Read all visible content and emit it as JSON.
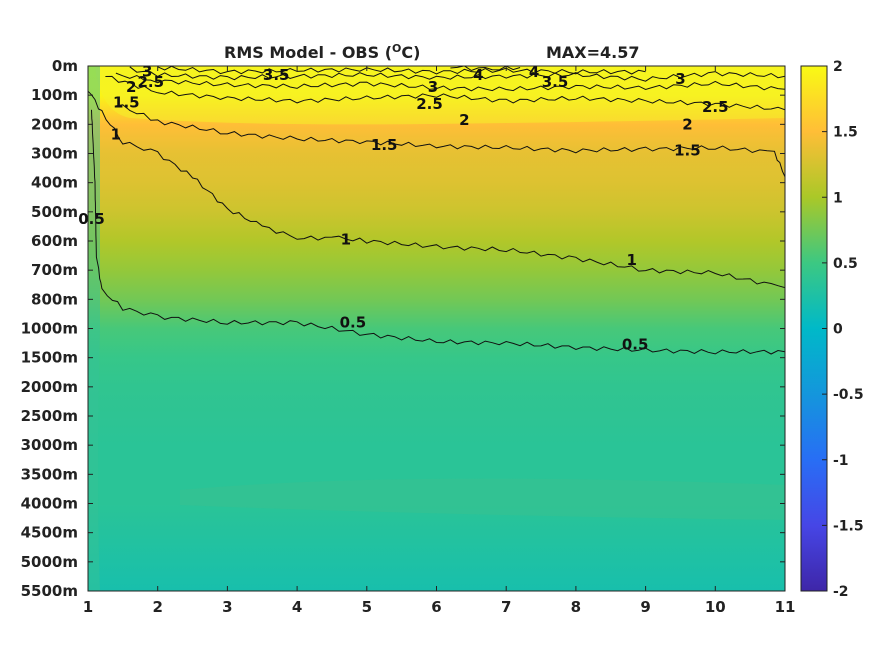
{
  "chart_data": {
    "type": "heatmap",
    "title_main": "RMS Model - OBS (",
    "title_sup": "O",
    "title_unit": "C)",
    "max_label": "MAX=4.57",
    "x": {
      "range": [
        1,
        11
      ],
      "ticks": [
        "1",
        "2",
        "3",
        "4",
        "5",
        "6",
        "7",
        "8",
        "9",
        "10",
        "11"
      ]
    },
    "y": {
      "ticks": [
        "0m",
        "100m",
        "200m",
        "300m",
        "400m",
        "500m",
        "600m",
        "700m",
        "800m",
        "1000m",
        "1500m",
        "2000m",
        "2500m",
        "3000m",
        "3500m",
        "4000m",
        "4500m",
        "5000m",
        "5500m"
      ]
    },
    "colorbar": {
      "range": [
        -2,
        2
      ],
      "ticks": [
        "2",
        "1.5",
        "1",
        "0.5",
        "0",
        "-0.5",
        "-1",
        "-1.5",
        "-2"
      ]
    },
    "field_profile": [
      {
        "depth_index": 0,
        "value": 2.0
      },
      {
        "depth_index": 1,
        "value": 1.95
      },
      {
        "depth_index": 2,
        "value": 1.5
      },
      {
        "depth_index": 3,
        "value": 1.35
      },
      {
        "depth_index": 4,
        "value": 1.3
      },
      {
        "depth_index": 5,
        "value": 1.2
      },
      {
        "depth_index": 6,
        "value": 1.05
      },
      {
        "depth_index": 7,
        "value": 0.9
      },
      {
        "depth_index": 8,
        "value": 0.75
      },
      {
        "depth_index": 9,
        "value": 0.55
      },
      {
        "depth_index": 10,
        "value": 0.45
      },
      {
        "depth_index": 11,
        "value": 0.4
      },
      {
        "depth_index": 12,
        "value": 0.38
      },
      {
        "depth_index": 13,
        "value": 0.35
      },
      {
        "depth_index": 14,
        "value": 0.35
      },
      {
        "depth_index": 15,
        "value": 0.35
      },
      {
        "depth_index": 16,
        "value": 0.3
      },
      {
        "depth_index": 17,
        "value": 0.25
      },
      {
        "depth_index": 18,
        "value": 0.2
      }
    ],
    "contours": [
      {
        "level": "0.5",
        "points": [
          [
            1.05,
            1.5
          ],
          [
            1.1,
            4
          ],
          [
            1.12,
            6.5
          ],
          [
            1.2,
            7.7
          ],
          [
            1.5,
            8.3
          ],
          [
            2,
            8.6
          ],
          [
            3,
            8.8
          ],
          [
            4,
            8.8
          ],
          [
            5,
            9.2
          ],
          [
            6,
            9.45
          ],
          [
            7,
            9.5
          ],
          [
            8,
            9.65
          ],
          [
            9,
            9.75
          ],
          [
            10,
            9.8
          ],
          [
            11,
            9.8
          ]
        ]
      },
      {
        "level": "1",
        "points": [
          [
            1.0,
            0.8
          ],
          [
            1.2,
            1.6
          ],
          [
            1.5,
            2.6
          ],
          [
            2.0,
            3.0
          ],
          [
            2.5,
            3.8
          ],
          [
            3.0,
            4.9
          ],
          [
            3.5,
            5.5
          ],
          [
            4.0,
            5.9
          ],
          [
            4.6,
            5.9
          ],
          [
            5.0,
            6.0
          ],
          [
            6.0,
            6.2
          ],
          [
            7.0,
            6.3
          ],
          [
            8.0,
            6.6
          ],
          [
            9.0,
            7.0
          ],
          [
            10.0,
            7.1
          ],
          [
            10.8,
            7.5
          ],
          [
            11.0,
            7.6
          ]
        ]
      },
      {
        "level": "1.5",
        "points": [
          [
            1.4,
            1.3
          ],
          [
            2,
            1.9
          ],
          [
            3,
            2.3
          ],
          [
            4,
            2.5
          ],
          [
            5,
            2.6
          ],
          [
            6,
            2.75
          ],
          [
            7,
            2.8
          ],
          [
            8,
            2.9
          ],
          [
            9,
            2.85
          ],
          [
            10,
            2.8
          ],
          [
            10.85,
            2.95
          ],
          [
            11,
            3.8
          ]
        ]
      },
      {
        "level": "2",
        "points": [
          [
            1.25,
            0.35
          ],
          [
            2,
            0.9
          ],
          [
            3,
            1.1
          ],
          [
            4,
            1.2
          ],
          [
            5,
            1.1
          ],
          [
            6,
            1.0
          ],
          [
            7,
            1.2
          ],
          [
            8,
            1.1
          ],
          [
            9,
            1.2
          ],
          [
            10,
            1.3
          ],
          [
            11,
            1.5
          ]
        ]
      },
      {
        "level": "2.5",
        "points": [
          [
            1.4,
            0.3
          ],
          [
            2,
            0.5
          ],
          [
            3,
            0.65
          ],
          [
            4,
            0.7
          ],
          [
            5,
            0.6
          ],
          [
            6,
            0.75
          ],
          [
            7,
            0.8
          ],
          [
            8,
            0.7
          ],
          [
            9,
            0.75
          ],
          [
            10,
            0.6
          ],
          [
            11,
            0.8
          ]
        ]
      },
      {
        "level": "3",
        "points": [
          [
            1.6,
            0.1
          ],
          [
            2,
            0.3
          ],
          [
            3,
            0.4
          ],
          [
            4,
            0.35
          ],
          [
            5,
            0.3
          ],
          [
            6,
            0.4
          ],
          [
            7,
            0.35
          ],
          [
            8,
            0.3
          ],
          [
            9,
            0.45
          ],
          [
            10,
            0.25
          ],
          [
            11,
            0.35
          ]
        ]
      },
      {
        "level": "3.5",
        "points": [
          [
            2.0,
            0.05
          ],
          [
            3,
            0.2
          ],
          [
            4,
            0.15
          ],
          [
            5,
            0.12
          ],
          [
            6,
            0.2
          ],
          [
            7,
            0.15
          ],
          [
            8,
            0.2
          ],
          [
            9,
            0.2
          ]
        ]
      },
      {
        "level": "4",
        "points": [
          [
            6.2,
            0.02
          ],
          [
            6.7,
            0.12
          ],
          [
            7.2,
            0.05
          ]
        ]
      }
    ],
    "contour_labels": [
      {
        "text": "3",
        "x": 1.85,
        "y": 0.18
      },
      {
        "text": "2",
        "x": 1.62,
        "y": 0.72
      },
      {
        "text": "2.5",
        "x": 1.9,
        "y": 0.55
      },
      {
        "text": "1.5",
        "x": 1.55,
        "y": 1.25
      },
      {
        "text": "1",
        "x": 1.4,
        "y": 2.35
      },
      {
        "text": "0.5",
        "x": 1.05,
        "y": 5.25
      },
      {
        "text": "3.5",
        "x": 3.7,
        "y": 0.3
      },
      {
        "text": "3",
        "x": 5.95,
        "y": 0.72
      },
      {
        "text": "2.5",
        "x": 5.9,
        "y": 1.3
      },
      {
        "text": "4",
        "x": 6.6,
        "y": 0.3
      },
      {
        "text": "4",
        "x": 7.4,
        "y": 0.2
      },
      {
        "text": "3.5",
        "x": 7.7,
        "y": 0.55
      },
      {
        "text": "2",
        "x": 6.4,
        "y": 1.85
      },
      {
        "text": "1.5",
        "x": 5.25,
        "y": 2.7
      },
      {
        "text": "1",
        "x": 4.7,
        "y": 5.95
      },
      {
        "text": "0.5",
        "x": 4.8,
        "y": 8.8
      },
      {
        "text": "3",
        "x": 9.5,
        "y": 0.45
      },
      {
        "text": "2.5",
        "x": 10.0,
        "y": 1.4
      },
      {
        "text": "2",
        "x": 9.6,
        "y": 2.0
      },
      {
        "text": "1.5",
        "x": 9.6,
        "y": 2.9
      },
      {
        "text": "1",
        "x": 8.8,
        "y": 6.65
      },
      {
        "text": "0.5",
        "x": 8.85,
        "y": 9.55
      }
    ]
  }
}
